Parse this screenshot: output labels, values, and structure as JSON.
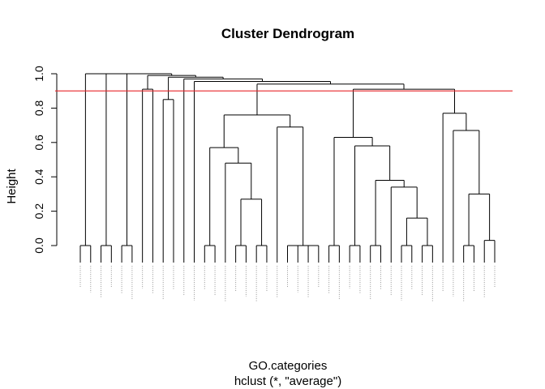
{
  "chart_data": {
    "type": "dendrogram",
    "title": "Cluster Dendrogram",
    "ylabel": "Height",
    "xlabel": "GO.categories",
    "sub": "hclust (*, \"average\")",
    "ylim": [
      0,
      1.0
    ],
    "yticks": [
      "0.0",
      "0.2",
      "0.4",
      "0.6",
      "0.8",
      "1.0"
    ],
    "cut_height": 0.9,
    "cut_line_color": "#e8262a",
    "branch_color": "#000000",
    "leaf_count": 36,
    "merges": [
      [
        1,
        2,
        0.0
      ],
      [
        3,
        4,
        0.0
      ],
      [
        5,
        6,
        0.0
      ],
      [
        7,
        8,
        0.0
      ],
      [
        9,
        10,
        0.0
      ],
      [
        11,
        12,
        0.0
      ],
      [
        13,
        14,
        0.0
      ],
      [
        15,
        16,
        0.0
      ],
      [
        17,
        18,
        0.0
      ],
      [
        19,
        20,
        0.0
      ],
      [
        21,
        22,
        0.0
      ],
      [
        23,
        24,
        0.0
      ],
      [
        25,
        26,
        0.0
      ],
      [
        27,
        28,
        0.0
      ],
      [
        30,
        31,
        0.0
      ],
      [
        32,
        33,
        0.0
      ],
      [
        35,
        36,
        0.03
      ],
      [
        27,
        28,
        0.0
      ],
      [
        -25,
        29,
        0.0
      ],
      [
        -27,
        -29,
        0.16
      ],
      [
        -28,
        -30,
        0.28
      ],
      [
        -23,
        -31,
        0.34
      ],
      [
        -24,
        -32,
        0.38
      ],
      [
        -20,
        -33,
        0.59
      ],
      [
        -19,
        -34,
        0.64
      ],
      [
        -16,
        -17,
        0.0
      ],
      [
        -36,
        34,
        0.3
      ],
      [
        -38,
        37,
        0.0
      ],
      [
        -37,
        -39,
        0.68
      ],
      [
        -35,
        -40,
        0.78
      ],
      [
        -12,
        -13,
        0.28
      ],
      [
        -11,
        -42,
        0.48
      ],
      [
        -10,
        -43,
        0.58
      ],
      [
        -14,
        -15,
        0.0
      ],
      [
        -45,
        -46,
        0.0
      ],
      [
        -44,
        -47,
        0.7
      ],
      [
        -48,
        -49,
        0.0
      ],
      [
        -49,
        -50,
        0.77
      ],
      [
        -51,
        -41,
        0.92
      ],
      [
        -52,
        -53,
        0.94
      ],
      [
        -54,
        -55,
        0.97
      ],
      [
        -56,
        -57,
        1.0
      ]
    ]
  }
}
